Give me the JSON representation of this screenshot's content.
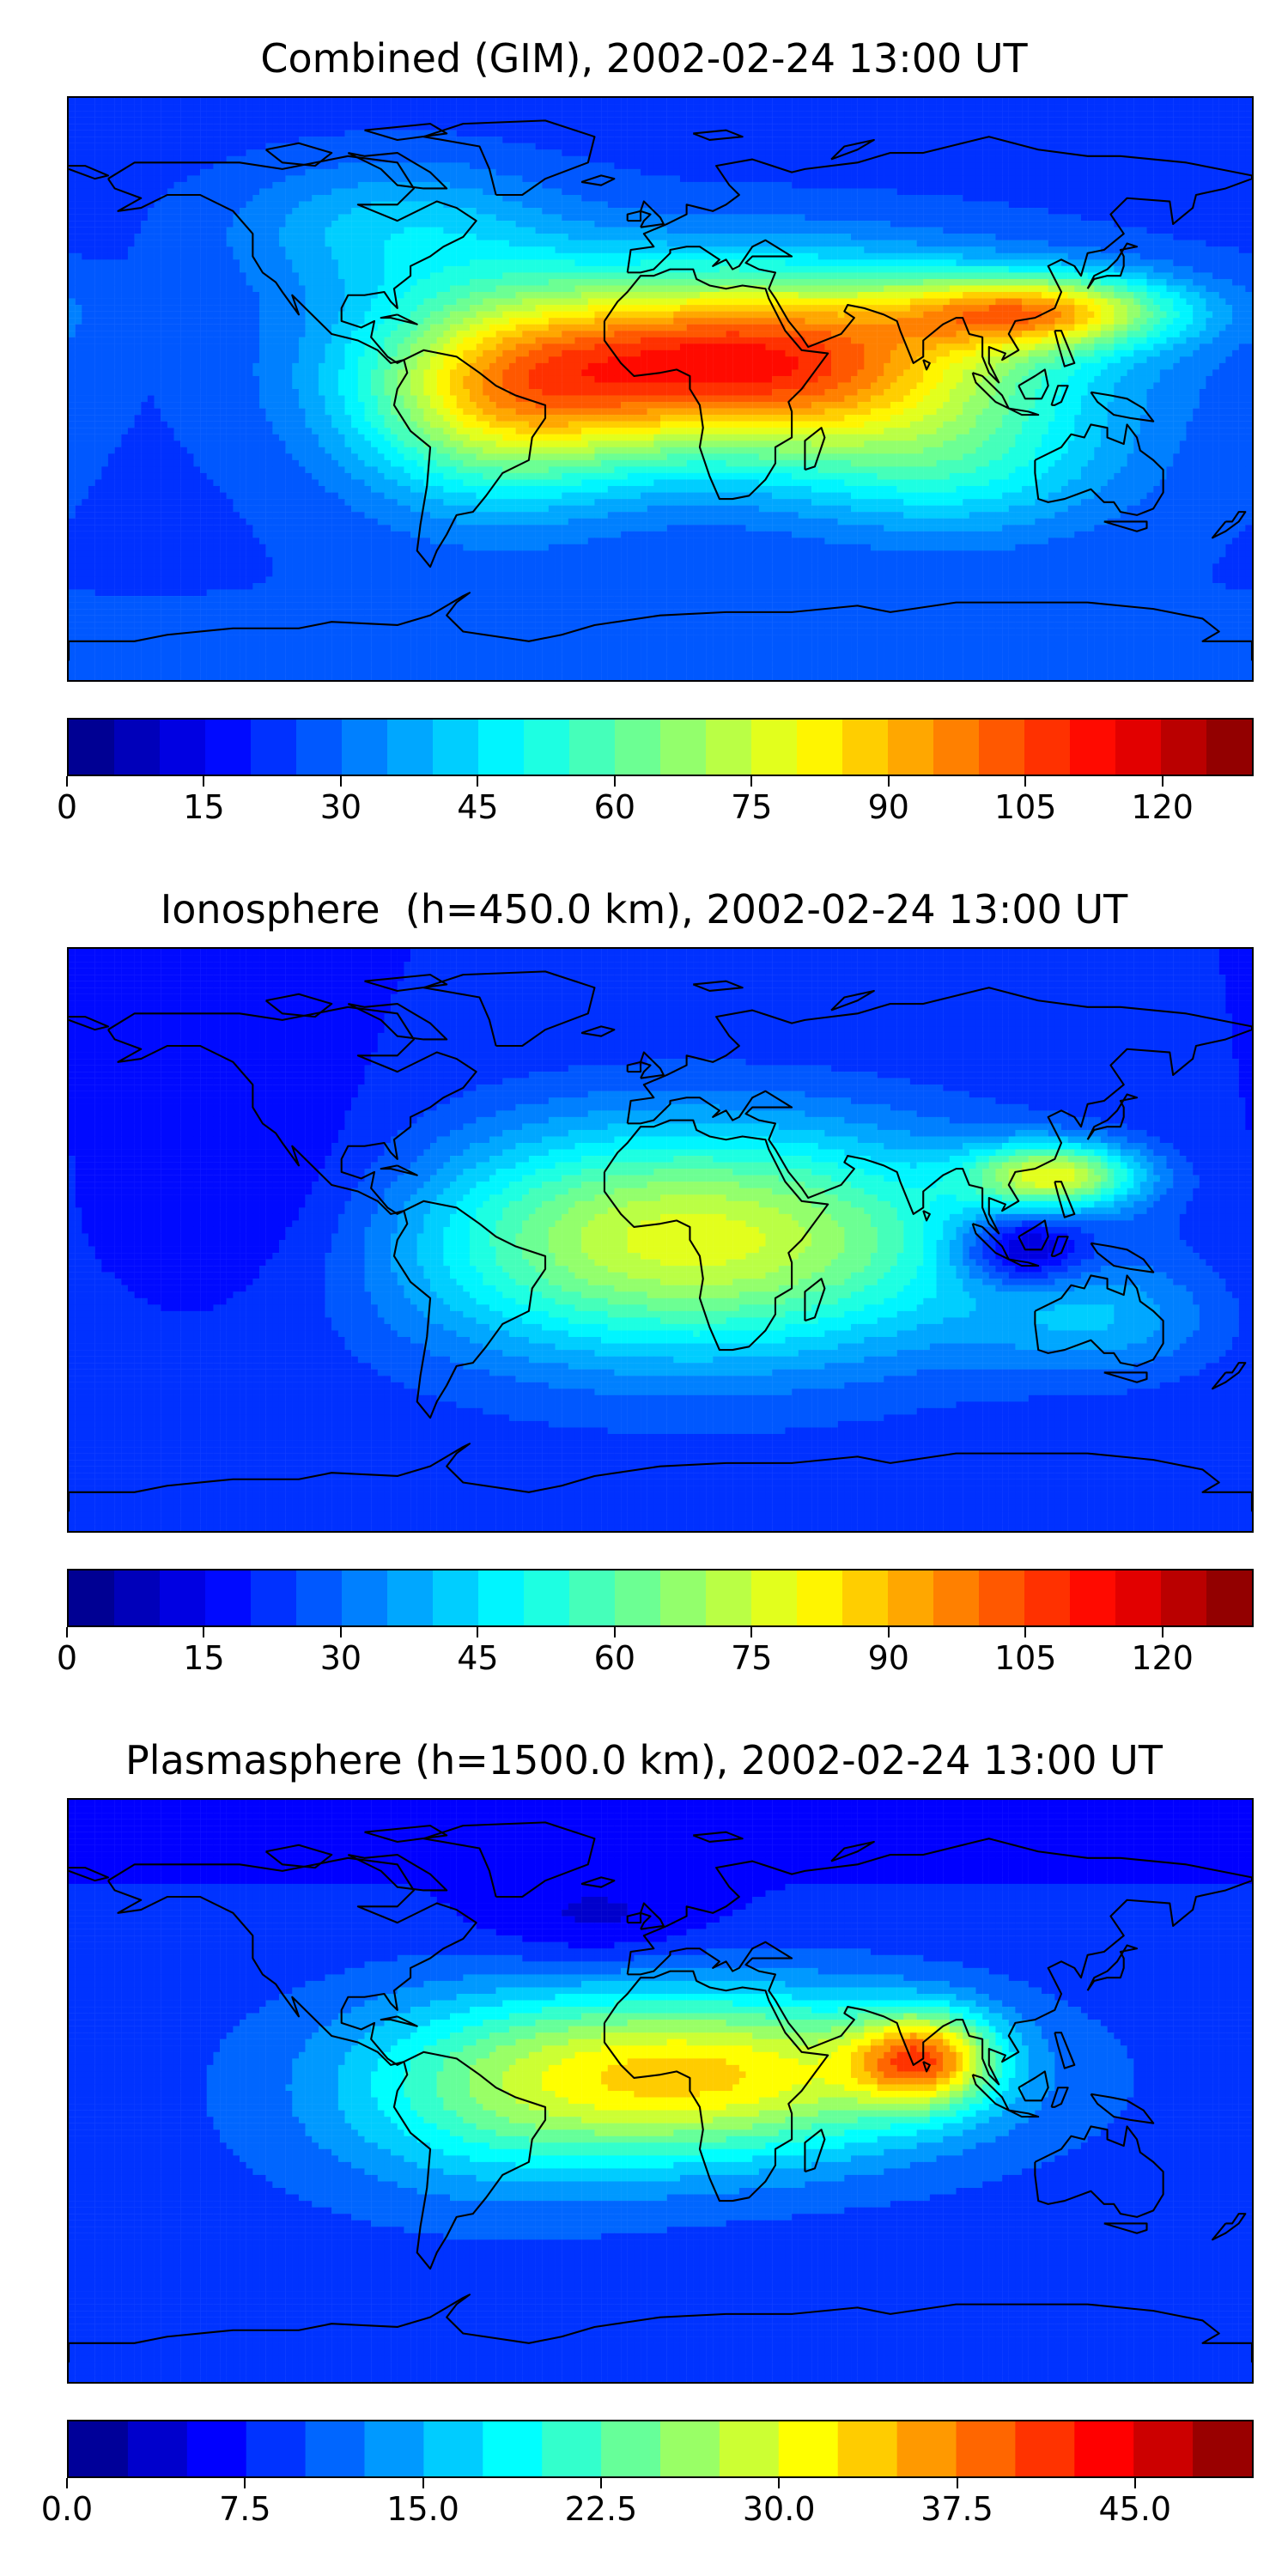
{
  "panels": [
    {
      "title": "Combined (GIM), 2002-02-24 13:00 UT",
      "colormap": "jet",
      "vmin": 0,
      "vmax": 130,
      "levels": 26,
      "ticks": [
        "0",
        "15",
        "30",
        "45",
        "60",
        "75",
        "90",
        "105",
        "120"
      ],
      "tick_values": [
        0,
        15,
        30,
        45,
        60,
        75,
        90,
        105,
        120
      ],
      "field": {
        "base": 24,
        "north_pole": 22,
        "south_pole": 26,
        "blobs": [
          {
            "lon": 25,
            "lat": 8,
            "amp": 88,
            "slon": 60,
            "slat": 20
          },
          {
            "lon": 115,
            "lat": 24,
            "amp": 55,
            "slon": 30,
            "slat": 8
          },
          {
            "lon": -50,
            "lat": -5,
            "amp": 38,
            "slon": 30,
            "slat": 22
          },
          {
            "lon": -80,
            "lat": 50,
            "amp": 18,
            "slon": 35,
            "slat": 15
          },
          {
            "lon": 90,
            "lat": -25,
            "amp": 20,
            "slon": 35,
            "slat": 15
          }
        ]
      }
    },
    {
      "title": "Ionosphere  (h=450.0 km), 2002-02-24 13:00 UT",
      "colormap": "jet",
      "vmin": 0,
      "vmax": 130,
      "levels": 26,
      "ticks": [
        "0",
        "15",
        "30",
        "45",
        "60",
        "75",
        "90",
        "105",
        "120"
      ],
      "tick_values": [
        0,
        15,
        30,
        45,
        60,
        75,
        90,
        105,
        120
      ],
      "field": {
        "base": 20,
        "north_pole": 20,
        "south_pole": 24,
        "blobs": [
          {
            "lon": 10,
            "lat": 0,
            "amp": 58,
            "slon": 65,
            "slat": 25
          },
          {
            "lon": 120,
            "lat": 20,
            "amp": 50,
            "slon": 18,
            "slat": 7
          },
          {
            "lon": 110,
            "lat": -3,
            "amp": -28,
            "slon": 14,
            "slat": 8
          },
          {
            "lon": -110,
            "lat": 10,
            "amp": -10,
            "slon": 35,
            "slat": 25
          },
          {
            "lon": 135,
            "lat": -25,
            "amp": 15,
            "slon": 25,
            "slat": 12
          }
        ]
      }
    },
    {
      "title": "Plasmasphere (h=1500.0 km), 2002-02-24 13:00 UT",
      "colormap": "jet",
      "vmin": 0,
      "vmax": 50,
      "levels": 20,
      "ticks": [
        "0.0",
        "7.5",
        "15.0",
        "22.5",
        "30.0",
        "37.5",
        "45.0"
      ],
      "tick_values": [
        0,
        7.5,
        15,
        22.5,
        30,
        37.5,
        45
      ],
      "field": {
        "base": 9,
        "north_pole": 6,
        "south_pole": 8,
        "blobs": [
          {
            "lon": 20,
            "lat": 5,
            "amp": 22,
            "slon": 50,
            "slat": 18
          },
          {
            "lon": 80,
            "lat": 10,
            "amp": 22,
            "slon": 15,
            "slat": 10
          },
          {
            "lon": -50,
            "lat": 0,
            "amp": 10,
            "slon": 40,
            "slat": 22
          },
          {
            "lon": -20,
            "lat": 52,
            "amp": -4,
            "slon": 25,
            "slat": 10
          }
        ]
      }
    }
  ]
}
